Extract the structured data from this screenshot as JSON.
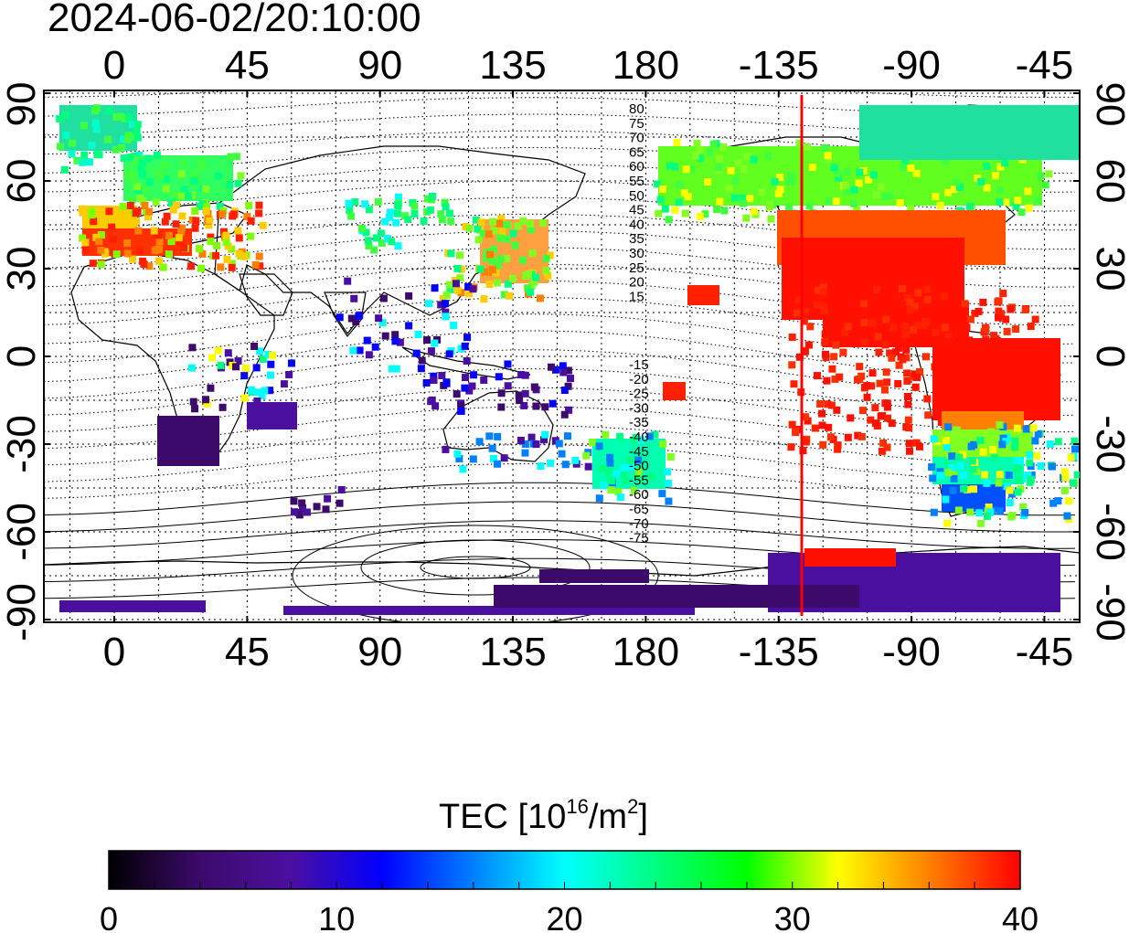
{
  "timestamp": "2024-06-02/20:10:00",
  "map": {
    "x_tick_labels": [
      "0",
      "45",
      "90",
      "135",
      "180",
      "-135",
      "-90",
      "-45"
    ],
    "y_tick_labels": [
      "90",
      "60",
      "30",
      "0",
      "-30",
      "-60",
      "-90"
    ],
    "contour_labels_north": [
      "80",
      "75",
      "70",
      "65",
      "60",
      "55",
      "50",
      "45",
      "40",
      "35",
      "30",
      "25",
      "20",
      "15"
    ],
    "contour_labels_south": [
      "-15",
      "-20",
      "-25",
      "-30",
      "-35",
      "-40",
      "-45",
      "-50",
      "-55",
      "-60",
      "-65",
      "-70",
      "-75"
    ],
    "terminator_color": "#ff0000"
  },
  "colorbar": {
    "title_prefix": "TEC  [10",
    "title_exp": "16",
    "title_mid": "/m",
    "title_sq": "2",
    "title_suffix": "]",
    "min": 0,
    "max": 40,
    "tick_labels": [
      "0",
      "10",
      "20",
      "30",
      "40"
    ],
    "colors": [
      "#000000",
      "#3b0a6b",
      "#4b0fa0",
      "#0000ff",
      "#0080ff",
      "#00ffff",
      "#00ff80",
      "#00ff00",
      "#ffff00",
      "#ff8000",
      "#ff0000"
    ]
  }
}
